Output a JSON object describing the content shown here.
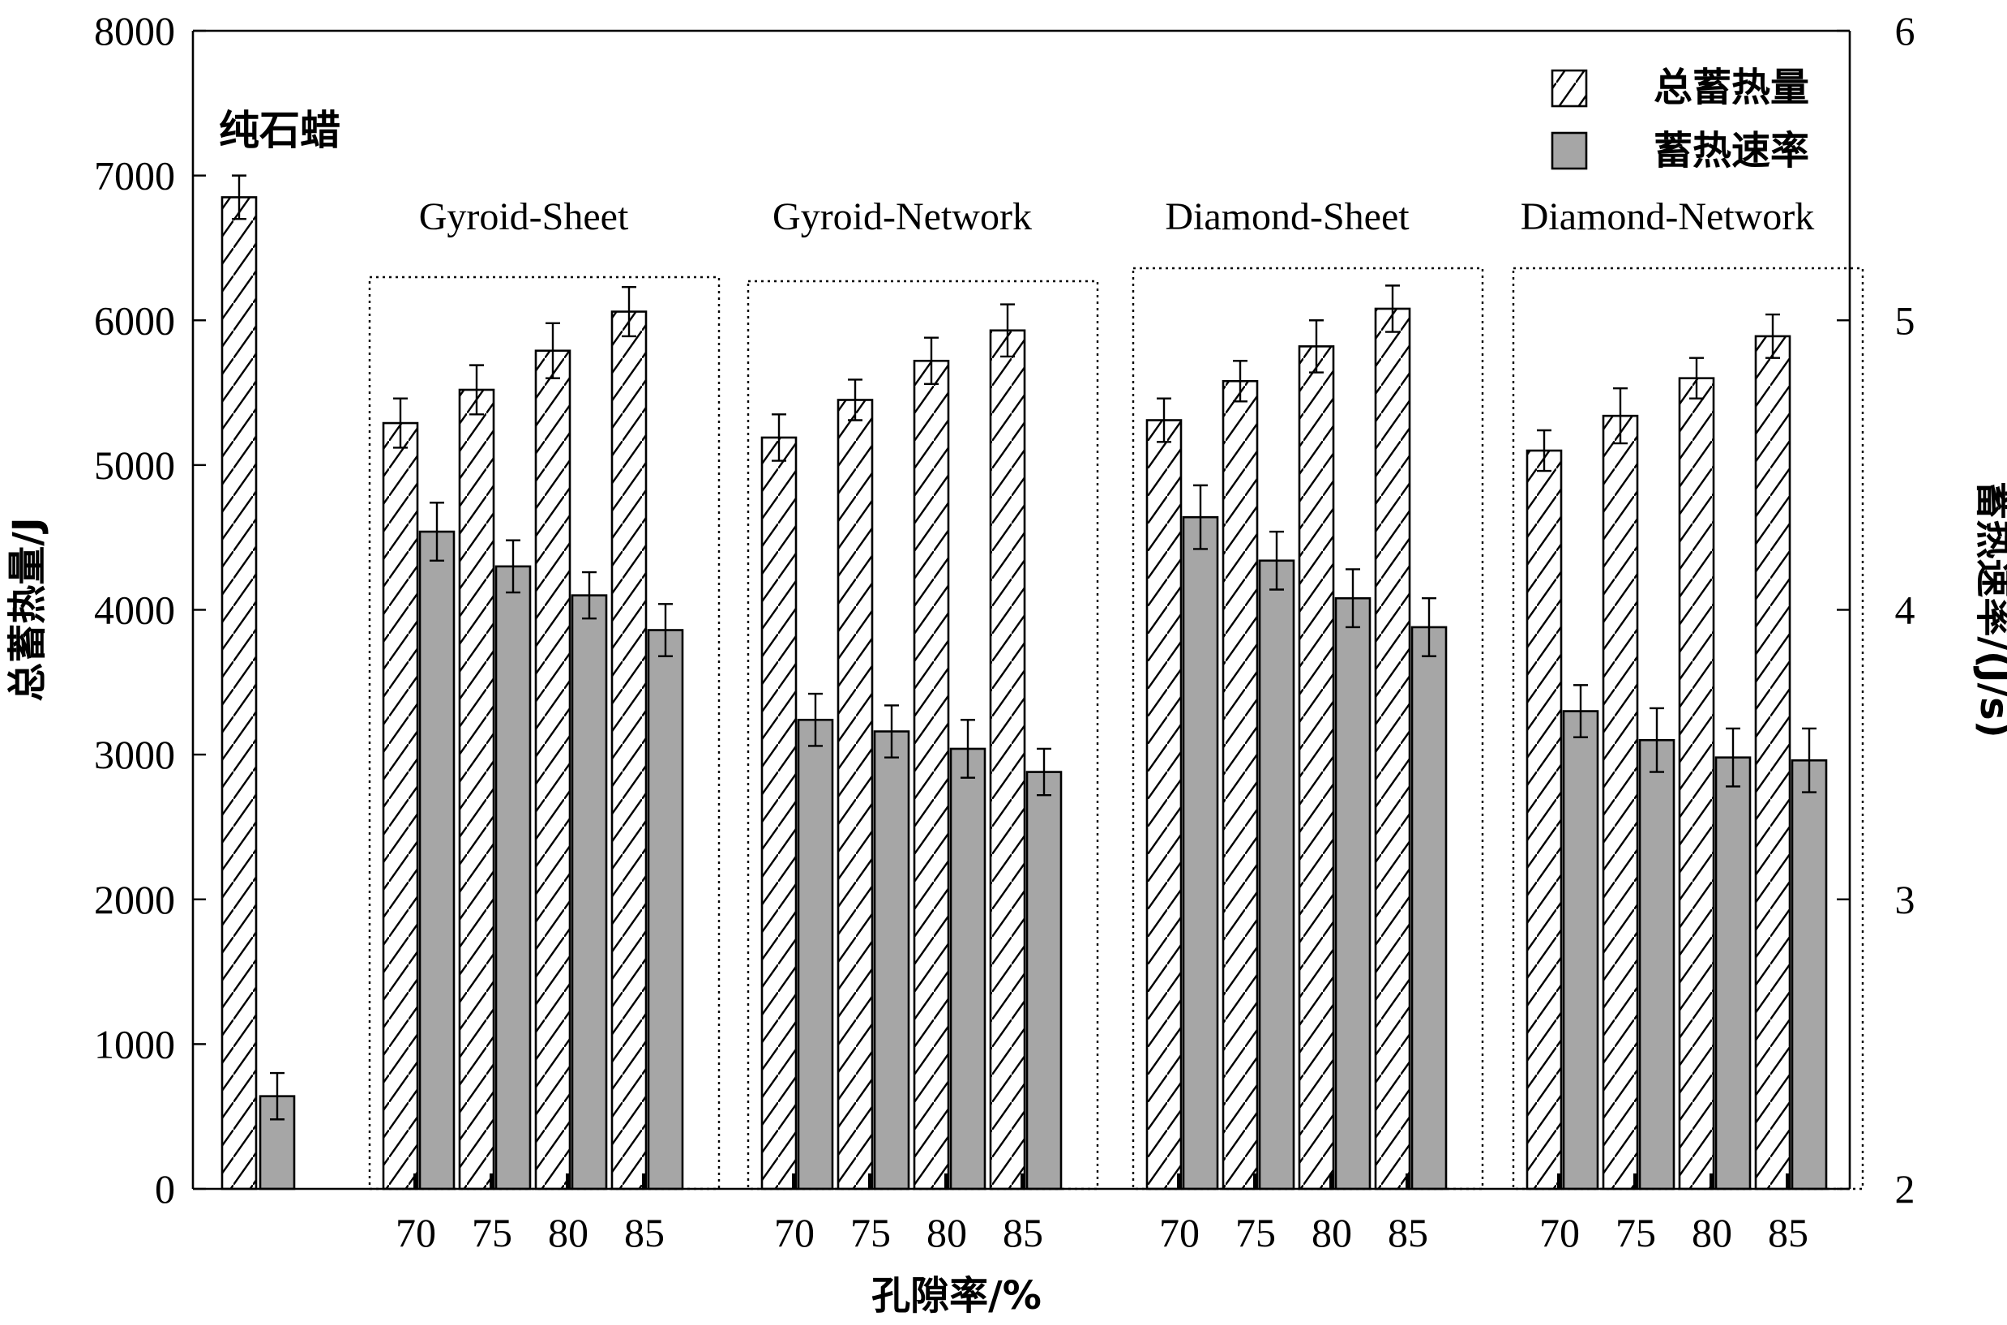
{
  "chart_data": {
    "type": "bar",
    "title": "",
    "xlabel": "孔隙率/%",
    "ylabel_left": "总蓄热量/J",
    "ylabel_right": "蓄热速率/(J/s)",
    "ylim_left": [
      0,
      8000
    ],
    "ylim_right": [
      2,
      6
    ],
    "yticks_left": [
      "0",
      "1000",
      "2000",
      "3000",
      "4000",
      "5000",
      "6000",
      "7000",
      "8000"
    ],
    "yticks_right": [
      "2",
      "3",
      "4",
      "5",
      "6"
    ],
    "legend": {
      "position": "top-right",
      "total_label": "总蓄热量",
      "rate_label": "蓄热速率"
    },
    "pure": {
      "label": "纯石蜡",
      "total": {
        "value": 6850,
        "err": 150
      },
      "rate": {
        "value": 2.32,
        "err": 0.08
      }
    },
    "groups": [
      {
        "name": "Gyroid-Sheet",
        "categories": [
          "70",
          "75",
          "80",
          "85"
        ],
        "total": [
          5290,
          5520,
          5790,
          6060
        ],
        "total_err": [
          170,
          170,
          190,
          170
        ],
        "rate": [
          4.27,
          4.15,
          4.05,
          3.93
        ],
        "rate_err": [
          0.1,
          0.09,
          0.08,
          0.09
        ]
      },
      {
        "name": "Gyroid-Network",
        "categories": [
          "70",
          "75",
          "80",
          "85"
        ],
        "total": [
          5190,
          5450,
          5720,
          5930
        ],
        "total_err": [
          160,
          140,
          160,
          180
        ],
        "rate": [
          3.62,
          3.58,
          3.52,
          3.44
        ],
        "rate_err": [
          0.09,
          0.09,
          0.1,
          0.08
        ]
      },
      {
        "name": "Diamond-Sheet",
        "categories": [
          "70",
          "75",
          "80",
          "85"
        ],
        "total": [
          5310,
          5580,
          5820,
          6080
        ],
        "total_err": [
          150,
          140,
          180,
          160
        ],
        "rate": [
          4.32,
          4.17,
          4.04,
          3.94
        ],
        "rate_err": [
          0.11,
          0.1,
          0.1,
          0.1
        ]
      },
      {
        "name": "Diamond-Network",
        "categories": [
          "70",
          "75",
          "80",
          "85"
        ],
        "total": [
          5100,
          5340,
          5600,
          5890
        ],
        "total_err": [
          140,
          190,
          140,
          150
        ],
        "rate": [
          3.65,
          3.55,
          3.49,
          3.48
        ],
        "rate_err": [
          0.09,
          0.11,
          0.1,
          0.11
        ]
      }
    ],
    "colors": {
      "rate_fill": "#a6a6a6",
      "total_fill": "#ffffff",
      "stroke": "#000000"
    }
  }
}
